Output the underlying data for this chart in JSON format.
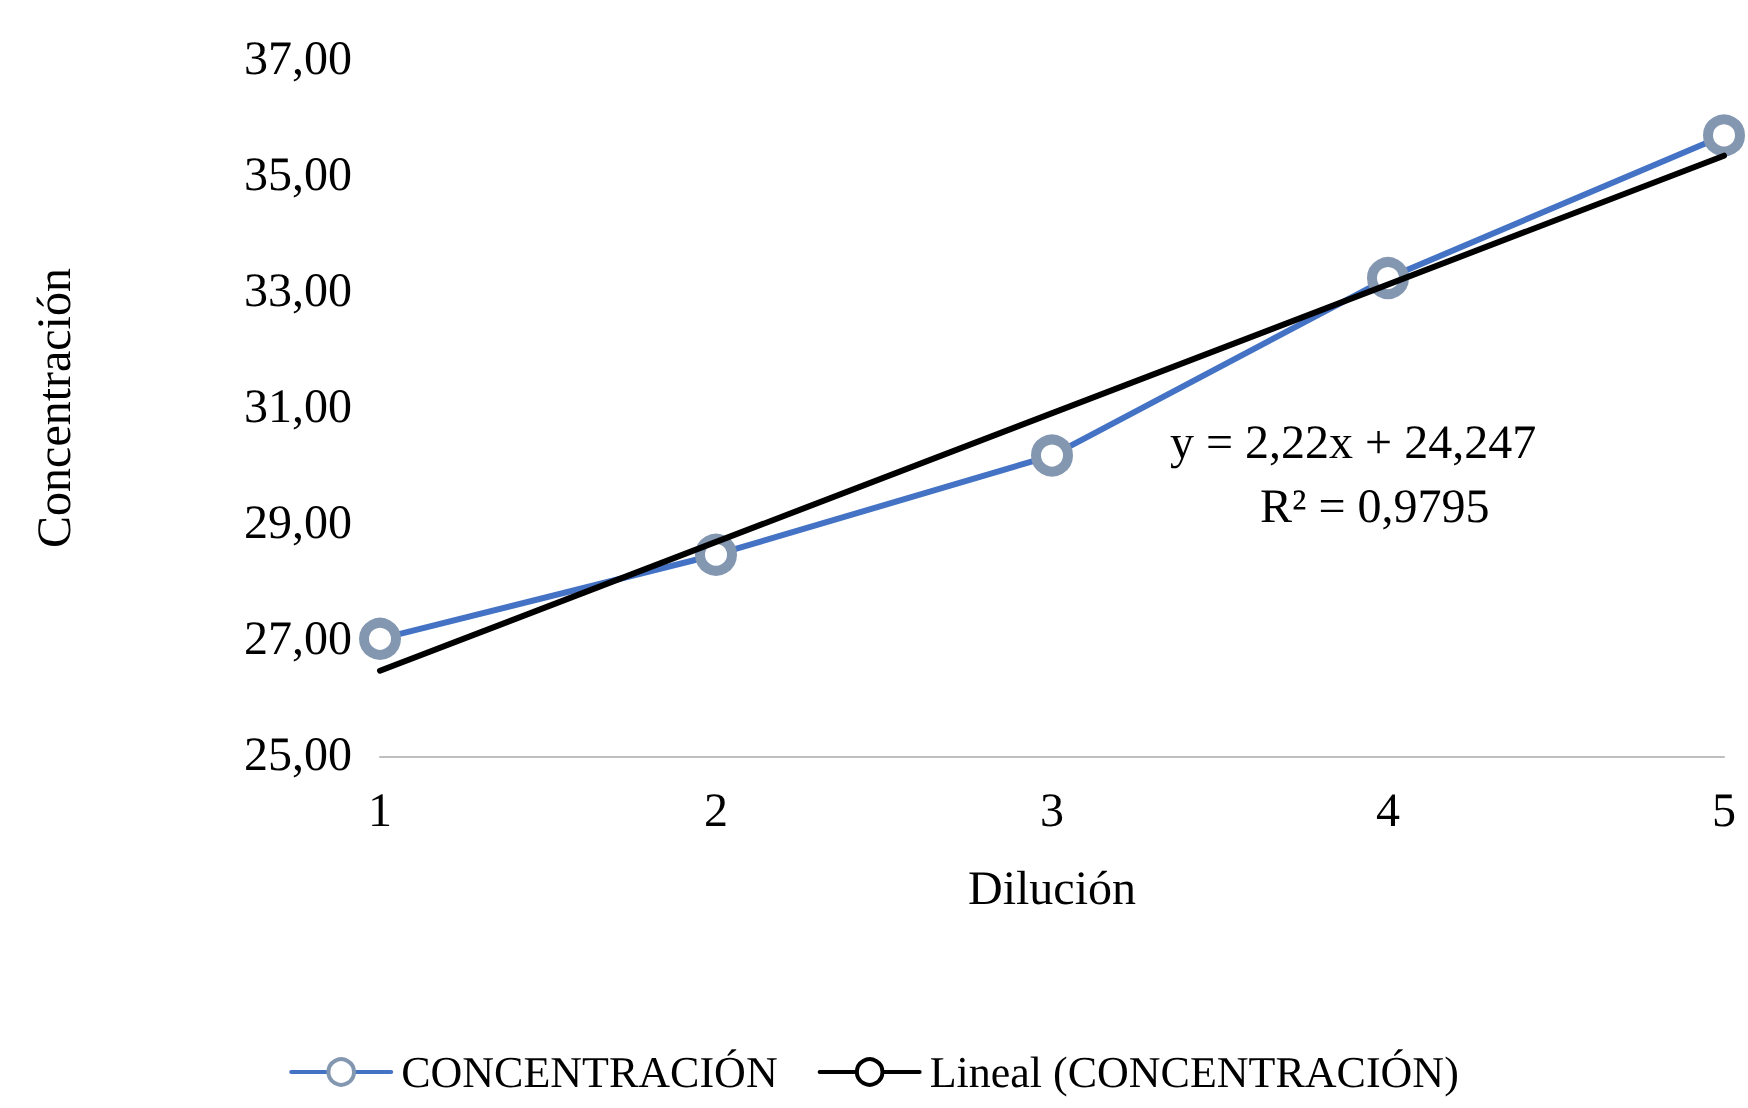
{
  "chart_data": {
    "type": "line",
    "xlabel": "Dilución",
    "ylabel": "Concentración",
    "x": [
      1,
      2,
      3,
      4,
      5
    ],
    "series": [
      {
        "name": "CONCENTRACIÓN",
        "color": "#4472c4",
        "values": [
          27.02,
          28.47,
          30.18,
          33.24,
          35.7
        ],
        "marker": "circle"
      },
      {
        "name": "Lineal (CONCENTRACIÓN)",
        "color": "#000000",
        "type": "line",
        "x": [
          1,
          5
        ],
        "values": [
          26.47,
          35.35
        ],
        "marker": "none"
      }
    ],
    "xlim": [
      1,
      5
    ],
    "xticks": [
      1,
      2,
      3,
      4,
      5
    ],
    "ylim": [
      25,
      37
    ],
    "yticks": [
      {
        "value": 25,
        "label": "25,00"
      },
      {
        "value": 27,
        "label": "27,00"
      },
      {
        "value": 29,
        "label": "29,00"
      },
      {
        "value": 31,
        "label": "31,00"
      },
      {
        "value": 33,
        "label": "33,00"
      },
      {
        "value": 35,
        "label": "35,00"
      },
      {
        "value": 37,
        "label": "37,00"
      }
    ],
    "annotations": [
      "y = 2,22x + 24,247",
      "R² = 0,9795"
    ],
    "grid": false,
    "legend": "bottom",
    "line_style": "solid"
  }
}
